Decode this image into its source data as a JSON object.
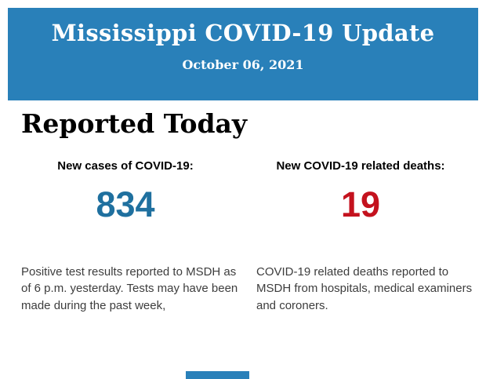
{
  "header": {
    "title": "Mississippi COVID-19 Update",
    "date": "October 06, 2021",
    "background_color": "#2980b9",
    "text_color": "#ffffff"
  },
  "section_title": "Reported Today",
  "stats": {
    "cases": {
      "label": "New cases of COVID-19:",
      "value": "834",
      "color": "#1f709f",
      "description": "Positive test results reported to MSDH as of 6 p.m. yesterday. Tests may have been made during the past week,"
    },
    "deaths": {
      "label": "New COVID-19 related deaths:",
      "value": "19",
      "color": "#c4121e",
      "description": "COVID-19 related deaths reported to MSDH from hospitals, medical examiners and coroners."
    }
  },
  "footer": {
    "accent_bar_color": "#2980b9"
  }
}
